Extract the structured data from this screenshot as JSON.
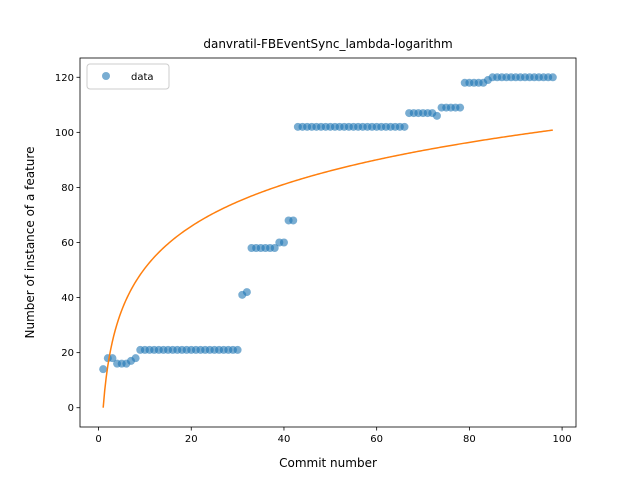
{
  "chart_data": {
    "type": "scatter",
    "title": "danvratil-FBEventSync_lambda-logarithm",
    "xlabel": "Commit number",
    "ylabel": "Number of instance of a feature",
    "xlim": [
      -4,
      103
    ],
    "ylim": [
      -7,
      127
    ],
    "xticks": [
      0,
      20,
      40,
      60,
      80,
      100
    ],
    "yticks": [
      0,
      20,
      40,
      60,
      80,
      100,
      120
    ],
    "grid": false,
    "legend_position": "top-left",
    "series": [
      {
        "name": "data",
        "kind": "points",
        "color": "#1f77b4",
        "points": [
          [
            1,
            14
          ],
          [
            2,
            18
          ],
          [
            3,
            18
          ],
          [
            4,
            16
          ],
          [
            5,
            16
          ],
          [
            6,
            16
          ],
          [
            7,
            17
          ],
          [
            8,
            18
          ],
          [
            9,
            21
          ],
          [
            10,
            21
          ],
          [
            11,
            21
          ],
          [
            12,
            21
          ],
          [
            13,
            21
          ],
          [
            14,
            21
          ],
          [
            15,
            21
          ],
          [
            16,
            21
          ],
          [
            17,
            21
          ],
          [
            18,
            21
          ],
          [
            19,
            21
          ],
          [
            20,
            21
          ],
          [
            21,
            21
          ],
          [
            22,
            21
          ],
          [
            23,
            21
          ],
          [
            24,
            21
          ],
          [
            25,
            21
          ],
          [
            26,
            21
          ],
          [
            27,
            21
          ],
          [
            28,
            21
          ],
          [
            29,
            21
          ],
          [
            30,
            21
          ],
          [
            31,
            41
          ],
          [
            32,
            42
          ],
          [
            33,
            58
          ],
          [
            34,
            58
          ],
          [
            35,
            58
          ],
          [
            36,
            58
          ],
          [
            37,
            58
          ],
          [
            38,
            58
          ],
          [
            39,
            60
          ],
          [
            40,
            60
          ],
          [
            41,
            68
          ],
          [
            42,
            68
          ],
          [
            43,
            102
          ],
          [
            44,
            102
          ],
          [
            45,
            102
          ],
          [
            46,
            102
          ],
          [
            47,
            102
          ],
          [
            48,
            102
          ],
          [
            49,
            102
          ],
          [
            50,
            102
          ],
          [
            51,
            102
          ],
          [
            52,
            102
          ],
          [
            53,
            102
          ],
          [
            54,
            102
          ],
          [
            55,
            102
          ],
          [
            56,
            102
          ],
          [
            57,
            102
          ],
          [
            58,
            102
          ],
          [
            59,
            102
          ],
          [
            60,
            102
          ],
          [
            61,
            102
          ],
          [
            62,
            102
          ],
          [
            63,
            102
          ],
          [
            64,
            102
          ],
          [
            65,
            102
          ],
          [
            66,
            102
          ],
          [
            67,
            107
          ],
          [
            68,
            107
          ],
          [
            69,
            107
          ],
          [
            70,
            107
          ],
          [
            71,
            107
          ],
          [
            72,
            107
          ],
          [
            73,
            106
          ],
          [
            74,
            109
          ],
          [
            75,
            109
          ],
          [
            76,
            109
          ],
          [
            77,
            109
          ],
          [
            78,
            109
          ],
          [
            79,
            118
          ],
          [
            80,
            118
          ],
          [
            81,
            118
          ],
          [
            82,
            118
          ],
          [
            83,
            118
          ],
          [
            84,
            119
          ],
          [
            85,
            120
          ],
          [
            86,
            120
          ],
          [
            87,
            120
          ],
          [
            88,
            120
          ],
          [
            89,
            120
          ],
          [
            90,
            120
          ],
          [
            91,
            120
          ],
          [
            92,
            120
          ],
          [
            93,
            120
          ],
          [
            94,
            120
          ],
          [
            95,
            120
          ],
          [
            96,
            120
          ],
          [
            97,
            120
          ],
          [
            98,
            120
          ]
        ]
      },
      {
        "kind": "fit-curve",
        "color": "#ff7f0e",
        "function": "y = a*ln(x)",
        "a": 21.99,
        "x_range": [
          1,
          98
        ]
      }
    ]
  }
}
